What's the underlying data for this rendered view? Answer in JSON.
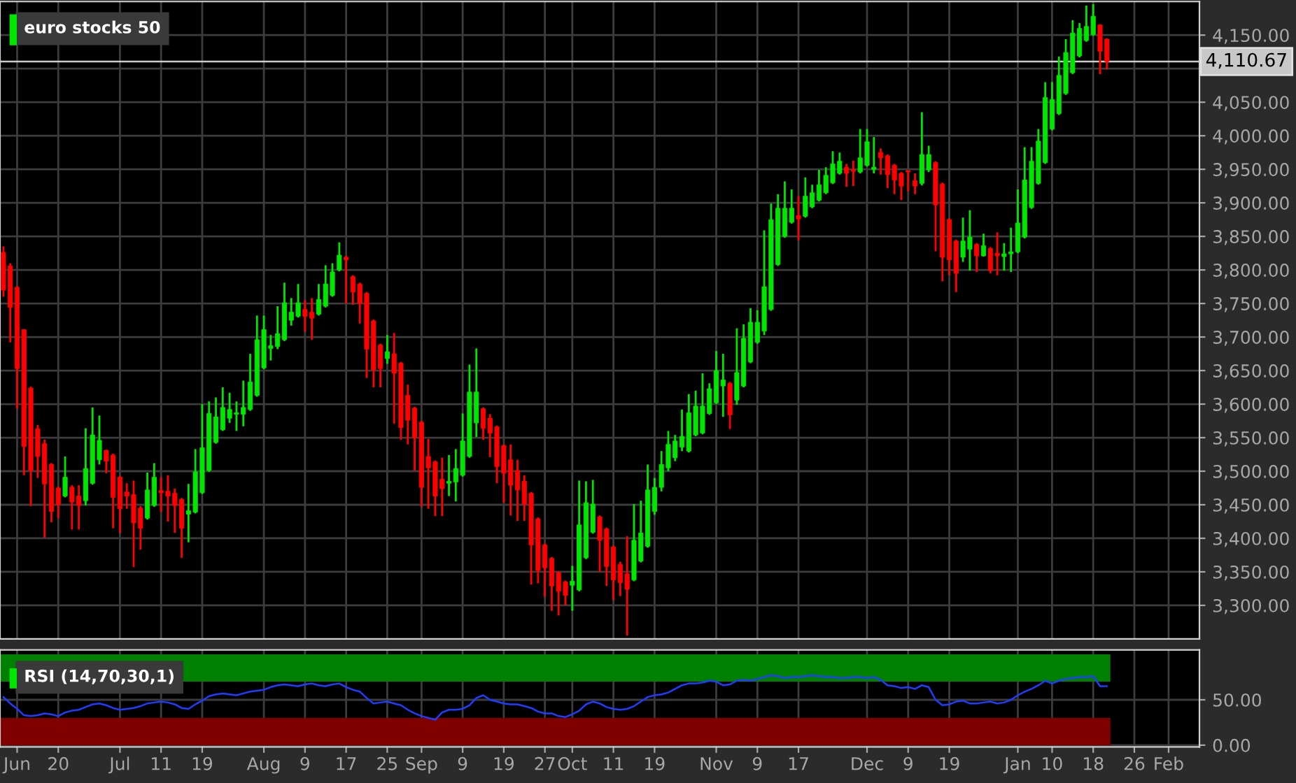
{
  "chart_data": [
    {
      "type": "candlestick",
      "title": "euro stocks 50",
      "categories": [
        null,
        null,
        null,
        null,
        null,
        null,
        null,
        null,
        null,
        null,
        null,
        null,
        null,
        null,
        null,
        null,
        null,
        null,
        null,
        null,
        null,
        null,
        null,
        null,
        null,
        null,
        null,
        null,
        null,
        null,
        null,
        null,
        null,
        null,
        null,
        null,
        null,
        null,
        null,
        null,
        null,
        null,
        null,
        null,
        null,
        null,
        null,
        null,
        null,
        null,
        null,
        null,
        null,
        null,
        null,
        null,
        null,
        null,
        null,
        null,
        null,
        null,
        null,
        null,
        null,
        null,
        null,
        null,
        null,
        null,
        null,
        null,
        null,
        null,
        null,
        null,
        null,
        null,
        null,
        null,
        null,
        null,
        null,
        null,
        null,
        null,
        null,
        null,
        null,
        null,
        null,
        null,
        null,
        null,
        null,
        null,
        null,
        null,
        null,
        null,
        null,
        null,
        null,
        null,
        null,
        null,
        null,
        null,
        null,
        null,
        null,
        null,
        null,
        null,
        null,
        null,
        null,
        null,
        null,
        null,
        null,
        null,
        null,
        null,
        null,
        null,
        null,
        null,
        null,
        null,
        null,
        null,
        null,
        null,
        null,
        null,
        null,
        null,
        null,
        null,
        null,
        null,
        null,
        null,
        null,
        null,
        null,
        null,
        null,
        null,
        null,
        null,
        null,
        null,
        null,
        null,
        null,
        null,
        null,
        null,
        null,
        null,
        null,
        null,
        null,
        null,
        null,
        null,
        null,
        null,
        null,
        null,
        null,
        null,
        null
      ],
      "ohlc": [
        [
          3826,
          3835,
          3760,
          3770
        ],
        [
          3806,
          3810,
          3692,
          3744
        ],
        [
          3774,
          3776,
          3593,
          3653
        ],
        [
          3711,
          3711,
          3494,
          3537
        ],
        [
          3624,
          3626,
          3448,
          3501
        ],
        [
          3563,
          3569,
          3490,
          3522
        ],
        [
          3541,
          3547,
          3401,
          3481
        ],
        [
          3510,
          3512,
          3424,
          3440
        ],
        [
          3475,
          3477,
          3430,
          3450
        ],
        [
          3463,
          3522,
          3461,
          3491
        ],
        [
          3476,
          3479,
          3413,
          3454
        ],
        [
          3463,
          3479,
          3413,
          3449
        ],
        [
          3456,
          3564,
          3449,
          3504
        ],
        [
          3482,
          3595,
          3480,
          3554
        ],
        [
          3517,
          3583,
          3510,
          3546
        ],
        [
          3531,
          3532,
          3497,
          3515
        ],
        [
          3524,
          3526,
          3415,
          3461
        ],
        [
          3491,
          3493,
          3408,
          3444
        ],
        [
          3469,
          3482,
          3444,
          3463
        ],
        [
          3465,
          3486,
          3357,
          3423
        ],
        [
          3445,
          3448,
          3383,
          3415
        ],
        [
          3430,
          3498,
          3428,
          3472
        ],
        [
          3449,
          3512,
          3447,
          3491
        ],
        [
          3471,
          3491,
          3439,
          3468
        ],
        [
          3470,
          3494,
          3425,
          3463
        ],
        [
          3467,
          3474,
          3408,
          3449
        ],
        [
          3458,
          3460,
          3371,
          3415
        ],
        [
          3436,
          3481,
          3394,
          3441
        ],
        [
          3439,
          3533,
          3437,
          3499
        ],
        [
          3468,
          3600,
          3466,
          3535
        ],
        [
          3501,
          3604,
          3499,
          3586
        ],
        [
          3543,
          3610,
          3541,
          3581
        ],
        [
          3562,
          3625,
          3560,
          3595
        ],
        [
          3579,
          3617,
          3572,
          3592
        ],
        [
          3585,
          3604,
          3560,
          3587
        ],
        [
          3585,
          3635,
          3567,
          3595
        ],
        [
          3592,
          3675,
          3590,
          3633
        ],
        [
          3613,
          3732,
          3611,
          3696
        ],
        [
          3654,
          3732,
          3652,
          3711
        ],
        [
          3683,
          3703,
          3665,
          3687
        ],
        [
          3686,
          3746,
          3682,
          3705
        ],
        [
          3696,
          3781,
          3694,
          3751
        ],
        [
          3725,
          3758,
          3717,
          3737
        ],
        [
          3731,
          3779,
          3729,
          3751
        ],
        [
          3741,
          3755,
          3708,
          3731
        ],
        [
          3737,
          3758,
          3696,
          3728
        ],
        [
          3734,
          3779,
          3732,
          3756
        ],
        [
          3746,
          3807,
          3744,
          3779
        ],
        [
          3762,
          3810,
          3760,
          3797
        ],
        [
          3800,
          3841,
          3798,
          3822
        ],
        [
          3819,
          3821,
          3750,
          3815
        ],
        [
          3790,
          3792,
          3748,
          3767
        ],
        [
          3779,
          3781,
          3720,
          3750
        ],
        [
          3765,
          3767,
          3639,
          3682
        ],
        [
          3724,
          3726,
          3625,
          3651
        ],
        [
          3688,
          3690,
          3625,
          3653
        ],
        [
          3668,
          3703,
          3660,
          3678
        ],
        [
          3675,
          3706,
          3571,
          3646
        ],
        [
          3661,
          3663,
          3547,
          3565
        ],
        [
          3613,
          3629,
          3540,
          3576
        ],
        [
          3594,
          3596,
          3501,
          3550
        ],
        [
          3573,
          3575,
          3447,
          3476
        ],
        [
          3522,
          3548,
          3444,
          3505
        ],
        [
          3514,
          3516,
          3433,
          3463
        ],
        [
          3488,
          3520,
          3433,
          3474
        ],
        [
          3482,
          3524,
          3463,
          3485
        ],
        [
          3484,
          3533,
          3455,
          3504
        ],
        [
          3494,
          3586,
          3492,
          3545
        ],
        [
          3522,
          3659,
          3520,
          3618
        ],
        [
          3572,
          3683,
          3551,
          3618
        ],
        [
          3593,
          3595,
          3547,
          3564
        ],
        [
          3579,
          3585,
          3521,
          3557
        ],
        [
          3566,
          3568,
          3482,
          3507
        ],
        [
          3538,
          3540,
          3453,
          3497
        ],
        [
          3517,
          3540,
          3434,
          3479
        ],
        [
          3501,
          3517,
          3426,
          3472
        ],
        [
          3485,
          3494,
          3426,
          3451
        ],
        [
          3467,
          3469,
          3331,
          3390
        ],
        [
          3429,
          3431,
          3333,
          3352
        ],
        [
          3390,
          3392,
          3313,
          3356
        ],
        [
          3370,
          3372,
          3292,
          3329
        ],
        [
          3349,
          3351,
          3285,
          3321
        ],
        [
          3335,
          3337,
          3300,
          3315
        ],
        [
          3330,
          3359,
          3292,
          3336
        ],
        [
          3323,
          3486,
          3321,
          3420
        ],
        [
          3371,
          3485,
          3369,
          3453
        ],
        [
          3409,
          3487,
          3407,
          3451
        ],
        [
          3432,
          3434,
          3350,
          3397
        ],
        [
          3414,
          3416,
          3329,
          3358
        ],
        [
          3387,
          3389,
          3308,
          3338
        ],
        [
          3361,
          3365,
          3314,
          3334
        ],
        [
          3347,
          3403,
          3255,
          3324
        ],
        [
          3338,
          3451,
          3336,
          3397
        ],
        [
          3366,
          3456,
          3364,
          3408
        ],
        [
          3388,
          3510,
          3386,
          3472
        ],
        [
          3440,
          3490,
          3435,
          3476
        ],
        [
          3476,
          3530,
          3470,
          3510
        ],
        [
          3505,
          3560,
          3500,
          3540
        ],
        [
          3520,
          3554,
          3515,
          3545
        ],
        [
          3536,
          3592,
          3530,
          3552
        ],
        [
          3530,
          3615,
          3528,
          3587
        ],
        [
          3554,
          3620,
          3552,
          3597
        ],
        [
          3557,
          3646,
          3555,
          3597
        ],
        [
          3586,
          3631,
          3584,
          3623
        ],
        [
          3602,
          3679,
          3600,
          3650
        ],
        [
          3627,
          3675,
          3581,
          3636
        ],
        [
          3631,
          3633,
          3563,
          3584
        ],
        [
          3606,
          3713,
          3599,
          3647
        ],
        [
          3627,
          3719,
          3625,
          3698
        ],
        [
          3663,
          3743,
          3661,
          3722
        ],
        [
          3692,
          3740,
          3690,
          3722
        ],
        [
          3709,
          3859,
          3703,
          3775
        ],
        [
          3741,
          3899,
          3739,
          3875
        ],
        [
          3808,
          3913,
          3806,
          3892
        ],
        [
          3850,
          3932,
          3848,
          3892
        ],
        [
          3871,
          3920,
          3869,
          3892
        ],
        [
          3881,
          3910,
          3844,
          3876
        ],
        [
          3880,
          3938,
          3878,
          3910
        ],
        [
          3894,
          3927,
          3892,
          3915
        ],
        [
          3904,
          3949,
          3902,
          3927
        ],
        [
          3915,
          3953,
          3913,
          3941
        ],
        [
          3930,
          3977,
          3928,
          3958
        ],
        [
          3944,
          3975,
          3942,
          3962
        ],
        [
          3953,
          3958,
          3924,
          3944
        ],
        [
          3949,
          3963,
          3925,
          3947
        ],
        [
          3946,
          4010,
          3944,
          3967
        ],
        [
          3956,
          4010,
          3954,
          3991
        ],
        [
          3950,
          3998,
          3944,
          3953
        ],
        [
          3975,
          3981,
          3942,
          3967
        ],
        [
          3970,
          3972,
          3922,
          3942
        ],
        [
          3956,
          3958,
          3913,
          3934
        ],
        [
          3944,
          3946,
          3904,
          3925
        ],
        [
          3948,
          3948,
          3917,
          3946
        ],
        [
          3933,
          3944,
          3913,
          3925
        ],
        [
          3929,
          4035,
          3926,
          3972
        ],
        [
          3949,
          3985,
          3946,
          3972
        ],
        [
          3960,
          3962,
          3828,
          3897
        ],
        [
          3928,
          3930,
          3783,
          3819
        ],
        [
          3875,
          3877,
          3792,
          3815
        ],
        [
          3843,
          3845,
          3767,
          3795
        ],
        [
          3819,
          3878,
          3812,
          3843
        ],
        [
          3831,
          3889,
          3799,
          3849
        ],
        [
          3838,
          3840,
          3797,
          3821
        ],
        [
          3821,
          3854,
          3820,
          3836
        ],
        [
          3832,
          3834,
          3795,
          3799
        ],
        [
          3825,
          3856,
          3792,
          3821
        ],
        [
          3820,
          3840,
          3799,
          3824
        ],
        [
          3824,
          3863,
          3797,
          3827
        ],
        [
          3827,
          3920,
          3825,
          3870
        ],
        [
          3849,
          3983,
          3847,
          3934
        ],
        [
          3893,
          3983,
          3891,
          3962
        ],
        [
          3929,
          4010,
          3927,
          3992
        ],
        [
          3960,
          4080,
          3958,
          4057
        ],
        [
          4010,
          4080,
          4008,
          4054
        ],
        [
          4033,
          4118,
          4031,
          4090
        ],
        [
          4063,
          4144,
          4061,
          4124
        ],
        [
          4094,
          4172,
          4092,
          4153
        ],
        [
          4119,
          4168,
          4117,
          4160
        ],
        [
          4142,
          4194,
          4140,
          4163
        ],
        [
          4151,
          4196,
          4149,
          4178
        ],
        [
          4165,
          4166,
          4092,
          4126
        ],
        [
          4144,
          4145,
          4099,
          4110.67
        ],
        null,
        null,
        null,
        null,
        null,
        null,
        null,
        null,
        null,
        null,
        null,
        null,
        null
      ],
      "colors": [
        "#ff0000",
        "#ff0000",
        "#ff0000",
        "#ff0000",
        "#ff0000",
        "#ff0000",
        "#ff0000",
        "#ff0000",
        "#ff0000",
        "#00e600",
        "#ff0000",
        "#ff0000",
        "#00e600",
        "#00e600",
        "#00e600",
        "#ff0000",
        "#ff0000",
        "#ff0000",
        "#ff0000",
        "#ff0000",
        "#ff0000",
        "#00e600",
        "#00e600",
        "#ff0000",
        "#ff0000",
        "#ff0000",
        "#ff0000",
        "#00e600",
        "#00e600",
        "#00e600",
        "#00e600",
        "#00e600",
        "#00e600",
        "#00e600",
        "#00e600",
        "#00e600",
        "#00e600",
        "#00e600",
        "#00e600",
        "#00e600",
        "#00e600",
        "#00e600",
        "#00e600",
        "#00e600",
        "#ff0000",
        "#ff0000",
        "#00e600",
        "#00e600",
        "#00e600",
        "#00e600",
        "#ff0000",
        "#ff0000",
        "#ff0000",
        "#ff0000",
        "#ff0000",
        "#ff0000",
        "#00e600",
        "#ff0000",
        "#ff0000",
        "#ff0000",
        "#ff0000",
        "#ff0000",
        "#ff0000",
        "#ff0000",
        "#ff0000",
        "#00e600",
        "#00e600",
        "#00e600",
        "#00e600",
        "#00e600",
        "#ff0000",
        "#ff0000",
        "#ff0000",
        "#ff0000",
        "#ff0000",
        "#ff0000",
        "#ff0000",
        "#ff0000",
        "#ff0000",
        "#ff0000",
        "#ff0000",
        "#ff0000",
        "#ff0000",
        "#00e600",
        "#00e600",
        "#00e600",
        "#00e600",
        "#ff0000",
        "#ff0000",
        "#ff0000",
        "#ff0000",
        "#ff0000",
        "#00e600",
        "#00e600",
        "#00e600",
        "#00e600",
        "#00e600",
        "#00e600",
        "#00e600",
        "#00e600",
        "#00e600",
        "#00e600",
        "#00e600",
        "#00e600",
        "#00e600",
        "#00e600",
        "#ff0000",
        "#00e600",
        "#00e600",
        "#00e600",
        "#00e600",
        "#00e600",
        "#00e600",
        "#00e600",
        "#00e600",
        "#00e600",
        "#ff0000",
        "#00e600",
        "#00e600",
        "#00e600",
        "#00e600",
        "#00e600",
        "#00e600",
        "#ff0000",
        "#ff0000",
        "#00e600",
        "#00e600",
        "#00e600",
        "#ff0000",
        "#ff0000",
        "#ff0000",
        "#ff0000",
        "#ff0000",
        "#ff0000",
        "#00e600",
        "#00e600",
        "#ff0000",
        "#ff0000",
        "#ff0000",
        "#ff0000",
        "#00e600",
        "#00e600",
        "#ff0000",
        "#00e600",
        "#ff0000",
        "#ff0000",
        "#00e600",
        "#00e600",
        "#00e600",
        "#00e600",
        "#00e600",
        "#00e600",
        "#00e600",
        "#00e600",
        "#00e600",
        "#00e600",
        "#00e600",
        "#00e600",
        "#00e600",
        "#00e600",
        "#ff0000",
        "#ff0000",
        null,
        null,
        null,
        null,
        null,
        null,
        null,
        null,
        null,
        null,
        null,
        null,
        null
      ],
      "ylim": [
        3250,
        4200
      ],
      "yticks": [
        {
          "value": 3300,
          "label": "3,300.00"
        },
        {
          "value": 3350,
          "label": "3,350.00"
        },
        {
          "value": 3400,
          "label": "3,400.00"
        },
        {
          "value": 3450,
          "label": "3,450.00"
        },
        {
          "value": 3500,
          "label": "3,500.00"
        },
        {
          "value": 3550,
          "label": "3,550.00"
        },
        {
          "value": 3600,
          "label": "3,600.00"
        },
        {
          "value": 3650,
          "label": "3,650.00"
        },
        {
          "value": 3700,
          "label": "3,700.00"
        },
        {
          "value": 3750,
          "label": "3,750.00"
        },
        {
          "value": 3800,
          "label": "3,800.00"
        },
        {
          "value": 3850,
          "label": "3,850.00"
        },
        {
          "value": 3900,
          "label": "3,900.00"
        },
        {
          "value": 3950,
          "label": "3,950.00"
        },
        {
          "value": 4000,
          "label": "4,000.00"
        },
        {
          "value": 4050,
          "label": "4,050.00"
        },
        {
          "value": 4100,
          "label": null
        },
        {
          "value": 4150,
          "label": "4,150.00"
        }
      ],
      "grid": true,
      "tick_labels": "y",
      "ref_lines": [
        {
          "axis": "y",
          "value": 4110.67,
          "label": "4,110.67",
          "color": "#cccccc"
        }
      ]
    },
    {
      "type": "line",
      "title": "RSI (14,70,30,1)",
      "categories": [
        null,
        null,
        "Jun",
        null,
        null,
        null,
        null,
        null,
        "20",
        null,
        null,
        null,
        null,
        null,
        null,
        null,
        null,
        "Jul",
        null,
        null,
        null,
        null,
        null,
        "11",
        null,
        null,
        null,
        null,
        null,
        "19",
        null,
        null,
        null,
        null,
        null,
        null,
        null,
        null,
        "Aug",
        null,
        null,
        null,
        null,
        null,
        "9",
        null,
        null,
        null,
        null,
        null,
        "17",
        null,
        null,
        null,
        null,
        null,
        "25",
        null,
        null,
        null,
        null,
        "Sep",
        null,
        null,
        null,
        null,
        null,
        "9",
        null,
        null,
        null,
        null,
        null,
        "19",
        null,
        null,
        null,
        null,
        null,
        "27",
        null,
        null,
        null,
        "Oct",
        null,
        null,
        null,
        null,
        null,
        "11",
        null,
        null,
        null,
        null,
        null,
        "19",
        null,
        null,
        null,
        null,
        null,
        null,
        null,
        null,
        "Nov",
        null,
        null,
        null,
        null,
        null,
        "9",
        null,
        null,
        null,
        null,
        null,
        "17",
        null,
        null,
        null,
        null,
        null,
        null,
        null,
        null,
        null,
        "Dec",
        null,
        null,
        null,
        null,
        null,
        "9",
        null,
        null,
        null,
        null,
        null,
        "19",
        null,
        null,
        null,
        null,
        null,
        null,
        null,
        null,
        null,
        "Jan",
        null,
        null,
        null,
        null,
        "10",
        null,
        null,
        null,
        null,
        null,
        "18",
        null,
        null,
        null,
        null,
        null,
        "26",
        null,
        null,
        null,
        null,
        "Feb",
        null,
        null,
        null,
        null
      ],
      "series": [
        {
          "color": "#1f3cff",
          "values": [
            53,
            46,
            40,
            33,
            32,
            33,
            35,
            34,
            32,
            36,
            38,
            39,
            42,
            45,
            46,
            44,
            41,
            39,
            40,
            41,
            43,
            46,
            47,
            48,
            47,
            45,
            41,
            40,
            45,
            49,
            54,
            56,
            57,
            56,
            55,
            57,
            59,
            60,
            61,
            64,
            66,
            67,
            66,
            65,
            67,
            68,
            66,
            65,
            67,
            68,
            64,
            61,
            59,
            52,
            46,
            47,
            48,
            46,
            44,
            39,
            35,
            32,
            30,
            28,
            36,
            39,
            39,
            40,
            44,
            52,
            55,
            50,
            48,
            46,
            45,
            45,
            43,
            41,
            37,
            35,
            35,
            32,
            31,
            34,
            38,
            45,
            48,
            46,
            42,
            40,
            39,
            40,
            43,
            48,
            53,
            55,
            56,
            58,
            62,
            66,
            68,
            68,
            69,
            71,
            70,
            66,
            67,
            71,
            72,
            71,
            73,
            75,
            77,
            76,
            74,
            75,
            75,
            76,
            77,
            76,
            75,
            75,
            74,
            74,
            75,
            75,
            74,
            75,
            72,
            66,
            65,
            63,
            64,
            62,
            66,
            64,
            50,
            44,
            45,
            48,
            49,
            46,
            46,
            47,
            48,
            46,
            47,
            50,
            55,
            59,
            62,
            66,
            71,
            68,
            71,
            73,
            74,
            75,
            75,
            76,
            65,
            65,
            null,
            null,
            null,
            null,
            null,
            null,
            null,
            null,
            null,
            null,
            null,
            null,
            null
          ]
        }
      ],
      "ylim": [
        -2,
        105
      ],
      "yticks": [
        {
          "value": 0,
          "label": "0.00"
        },
        {
          "value": 50,
          "label": "50.00"
        }
      ],
      "grid": true,
      "bands": [
        {
          "axis": "y",
          "from": 70,
          "to": 100,
          "color": "#008000",
          "label": null
        },
        {
          "axis": "y",
          "from": 0,
          "to": 30,
          "color": "#800000",
          "label": null
        }
      ]
    }
  ]
}
